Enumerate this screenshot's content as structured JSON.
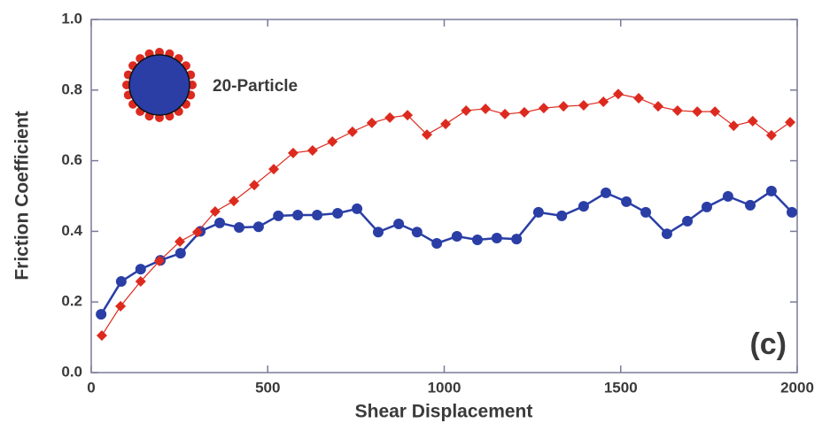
{
  "chart_data": {
    "type": "line",
    "xlabel": "Shear Displacement",
    "ylabel": "Friction Coefficient",
    "annotations": [
      "20-Particle",
      "(c)"
    ],
    "xlim": [
      0,
      2000
    ],
    "ylim": [
      0,
      1
    ],
    "xticks": [
      0,
      500,
      1000,
      1500,
      2000
    ],
    "yticks": [
      {
        "value": 0,
        "label": "0.0"
      },
      0.2,
      0.4,
      0.6,
      0.8,
      {
        "value": 1,
        "label": "1.0"
      }
    ],
    "series": [
      {
        "color": "#2a3ea6",
        "marker": "circle",
        "x": [
          28,
          85,
          140,
          196,
          253,
          309,
          364,
          419,
          474,
          530,
          585,
          640,
          698,
          753,
          813,
          871,
          923,
          979,
          1036,
          1094,
          1149,
          1205,
          1267,
          1333,
          1395,
          1458,
          1516,
          1571,
          1631,
          1689,
          1744,
          1804,
          1867,
          1927,
          1985
        ],
        "values": [
          0.165,
          0.258,
          0.293,
          0.318,
          0.338,
          0.4,
          0.424,
          0.411,
          0.413,
          0.444,
          0.446,
          0.446,
          0.451,
          0.464,
          0.398,
          0.421,
          0.398,
          0.366,
          0.386,
          0.376,
          0.381,
          0.378,
          0.454,
          0.444,
          0.471,
          0.509,
          0.484,
          0.454,
          0.393,
          0.429,
          0.469,
          0.499,
          0.474,
          0.514,
          0.454
        ]
      },
      {
        "color": "#dd2a1f",
        "marker": "diamond",
        "x": [
          30,
          83,
          140,
          193,
          251,
          301,
          351,
          404,
          462,
          517,
          572,
          627,
          683,
          740,
          795,
          846,
          896,
          951,
          1004,
          1062,
          1117,
          1172,
          1227,
          1282,
          1338,
          1395,
          1451,
          1493,
          1551,
          1606,
          1661,
          1717,
          1767,
          1820,
          1874,
          1927,
          1980
        ],
        "values": [
          0.105,
          0.188,
          0.258,
          0.316,
          0.371,
          0.398,
          0.456,
          0.486,
          0.531,
          0.576,
          0.622,
          0.629,
          0.654,
          0.682,
          0.707,
          0.722,
          0.729,
          0.674,
          0.704,
          0.742,
          0.747,
          0.732,
          0.737,
          0.749,
          0.754,
          0.757,
          0.767,
          0.789,
          0.777,
          0.754,
          0.742,
          0.739,
          0.739,
          0.699,
          0.712,
          0.672,
          0.709
        ]
      }
    ]
  }
}
